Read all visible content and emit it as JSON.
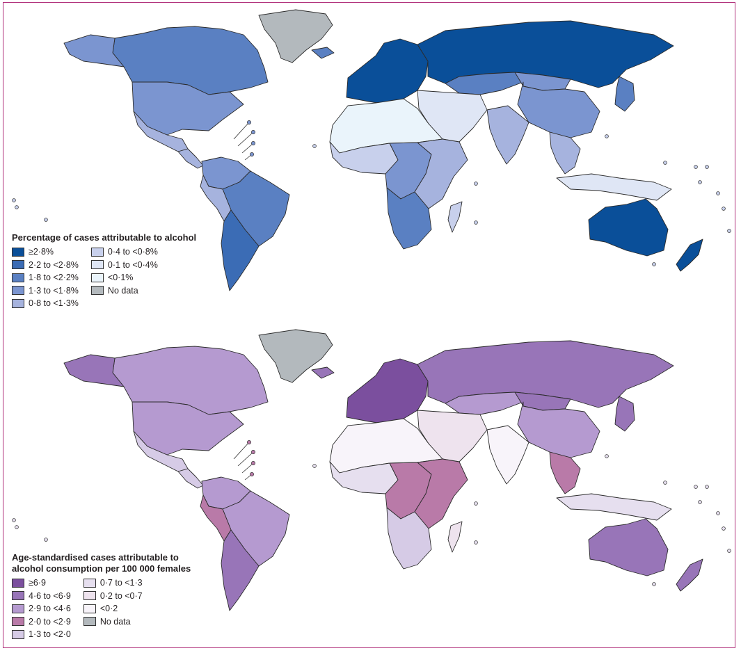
{
  "maps": [
    {
      "id": "percentage",
      "legend_title_lines": [
        "Percentage of cases attributable to alcohol"
      ],
      "classes": [
        {
          "label": "≥2·8%",
          "color": "#0a4f99"
        },
        {
          "label": "2·2 to <2·8%",
          "color": "#3b6cb5"
        },
        {
          "label": "1·8 to <2·2%",
          "color": "#5a80c2"
        },
        {
          "label": "1·3 to <1·8%",
          "color": "#7b95d0"
        },
        {
          "label": "0·8 to <1·3%",
          "color": "#a6b3de"
        },
        {
          "label": "0·4 to <0·8%",
          "color": "#c8d0ec"
        },
        {
          "label": "0·1 to <0·4%",
          "color": "#dfe6f5"
        },
        {
          "label": "<0·1%",
          "color": "#eaf4fb"
        },
        {
          "label": "No data",
          "color": "#b3b9bd"
        }
      ],
      "regions": {
        "greenland": 8,
        "canada": 2,
        "alaska": 3,
        "usa": 3,
        "mexico": 4,
        "central_america": 4,
        "south_america_north": 3,
        "brazil": 2,
        "andes": 4,
        "argentina": 1,
        "iceland": 2,
        "europe": 0,
        "russia": 0,
        "central_asia": 2,
        "mongolia": 3,
        "china": 3,
        "middle_east": 6,
        "india": 4,
        "southeast_asia": 4,
        "indonesia": 6,
        "japan": 2,
        "north_africa": 7,
        "west_africa": 5,
        "central_africa": 3,
        "east_africa": 4,
        "southern_africa": 2,
        "madagascar": 5,
        "australia": 0,
        "new_zealand": 0
      }
    },
    {
      "id": "age_standardised",
      "legend_title_lines": [
        "Age-standardised cases attributable to",
        "alcohol consumption per 100 000 females"
      ],
      "classes": [
        {
          "label": "≥6·9",
          "color": "#7b4f9e"
        },
        {
          "label": "4·6 to <6·9",
          "color": "#9875b8"
        },
        {
          "label": "2·9 to <4·6",
          "color": "#b59ad0"
        },
        {
          "label": "2·0 to <2·9",
          "color": "#b97aa8"
        },
        {
          "label": "1·3 to <2·0",
          "color": "#d6cbe6"
        },
        {
          "label": "0·7 to <1·3",
          "color": "#e6dfef"
        },
        {
          "label": "0·2 to <0·7",
          "color": "#eee3ee"
        },
        {
          "label": "<0·2",
          "color": "#f8f4fa"
        },
        {
          "label": "No data",
          "color": "#b3b9bd"
        }
      ],
      "regions": {
        "greenland": 8,
        "canada": 2,
        "alaska": 1,
        "usa": 2,
        "mexico": 4,
        "central_america": 4,
        "south_america_north": 2,
        "brazil": 2,
        "andes": 3,
        "argentina": 1,
        "iceland": 1,
        "europe": 0,
        "russia": 1,
        "central_asia": 2,
        "mongolia": 1,
        "china": 2,
        "middle_east": 6,
        "india": 7,
        "southeast_asia": 3,
        "indonesia": 5,
        "japan": 1,
        "north_africa": 7,
        "west_africa": 5,
        "central_africa": 3,
        "east_africa": 3,
        "southern_africa": 4,
        "madagascar": 6,
        "australia": 1,
        "new_zealand": 1
      }
    }
  ]
}
